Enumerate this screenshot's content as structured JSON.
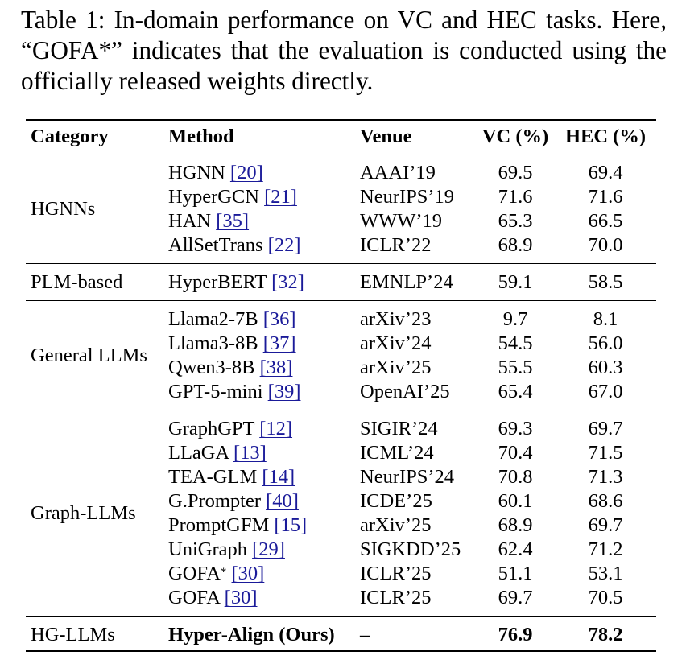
{
  "caption": "Table 1: In-domain performance on VC and HEC tasks. Here, “GOFA*” indicates that the evaluation is con­ducted using the officially released weights directly.",
  "table": {
    "headers": {
      "category": "Category",
      "method": "Method",
      "venue": "Venue",
      "vc": "VC (%)",
      "hec": "HEC (%)"
    },
    "groups": [
      {
        "category": "HGNNs",
        "rows": [
          {
            "method": "HGNN",
            "ref": "[20]",
            "venue": "AAAI’19",
            "vc": "69.5",
            "hec": "69.4"
          },
          {
            "method": "HyperGCN",
            "ref": "[21]",
            "venue": "NeurIPS’19",
            "vc": "71.6",
            "hec": "71.6"
          },
          {
            "method": "HAN",
            "ref": "[35]",
            "venue": "WWW’19",
            "vc": "65.3",
            "hec": "66.5"
          },
          {
            "method": "AllSetTrans",
            "ref": "[22]",
            "venue": "ICLR’22",
            "vc": "68.9",
            "hec": "70.0"
          }
        ]
      },
      {
        "category": "PLM-based",
        "rows": [
          {
            "method": "HyperBERT",
            "ref": "[32]",
            "venue": "EMNLP’24",
            "vc": "59.1",
            "hec": "58.5"
          }
        ]
      },
      {
        "category": "General LLMs",
        "rows": [
          {
            "method": "Llama2-7B",
            "ref": "[36]",
            "venue": "arXiv’23",
            "vc": "9.7",
            "hec": "8.1"
          },
          {
            "method": "Llama3-8B",
            "ref": "[37]",
            "venue": "arXiv’24",
            "vc": "54.5",
            "hec": "56.0"
          },
          {
            "method": "Qwen3-8B",
            "ref": "[38]",
            "venue": "arXiv’25",
            "vc": "55.5",
            "hec": "60.3"
          },
          {
            "method": "GPT-5-mini",
            "ref": "[39]",
            "venue": "OpenAI’25",
            "vc": "65.4",
            "hec": "67.0"
          }
        ]
      },
      {
        "category": "Graph-LLMs",
        "rows": [
          {
            "method": "GraphGPT",
            "ref": "[12]",
            "venue": "SIGIR’24",
            "vc": "69.3",
            "hec": "69.7"
          },
          {
            "method": "LLaGA",
            "ref": "[13]",
            "venue": "ICML’24",
            "vc": "70.4",
            "hec": "71.5"
          },
          {
            "method": "TEA-GLM",
            "ref": "[14]",
            "venue": "NeurIPS’24",
            "vc": "70.8",
            "hec": "71.3"
          },
          {
            "method": "G.Prompter",
            "ref": "[40]",
            "venue": "ICDE’25",
            "vc": "60.1",
            "hec": "68.6"
          },
          {
            "method": "PromptGFM",
            "ref": "[15]",
            "venue": "arXiv’25",
            "vc": "68.9",
            "hec": "69.7"
          },
          {
            "method": "UniGraph",
            "ref": "[29]",
            "venue": "SIGKDD’25",
            "vc": "62.4",
            "hec": "71.2"
          },
          {
            "method": "GOFA",
            "sup": "*",
            "ref": "[30]",
            "venue": "ICLR’25",
            "vc": "51.1",
            "hec": "53.1"
          },
          {
            "method": "GOFA",
            "ref": "[30]",
            "venue": "ICLR’25",
            "vc": "69.7",
            "hec": "70.5"
          }
        ]
      },
      {
        "category": "HG-LLMs",
        "rows": [
          {
            "method": "Hyper-Align (Ours)",
            "venue": "–",
            "vc": "76.9",
            "hec": "78.2",
            "bold": true
          }
        ]
      }
    ]
  }
}
